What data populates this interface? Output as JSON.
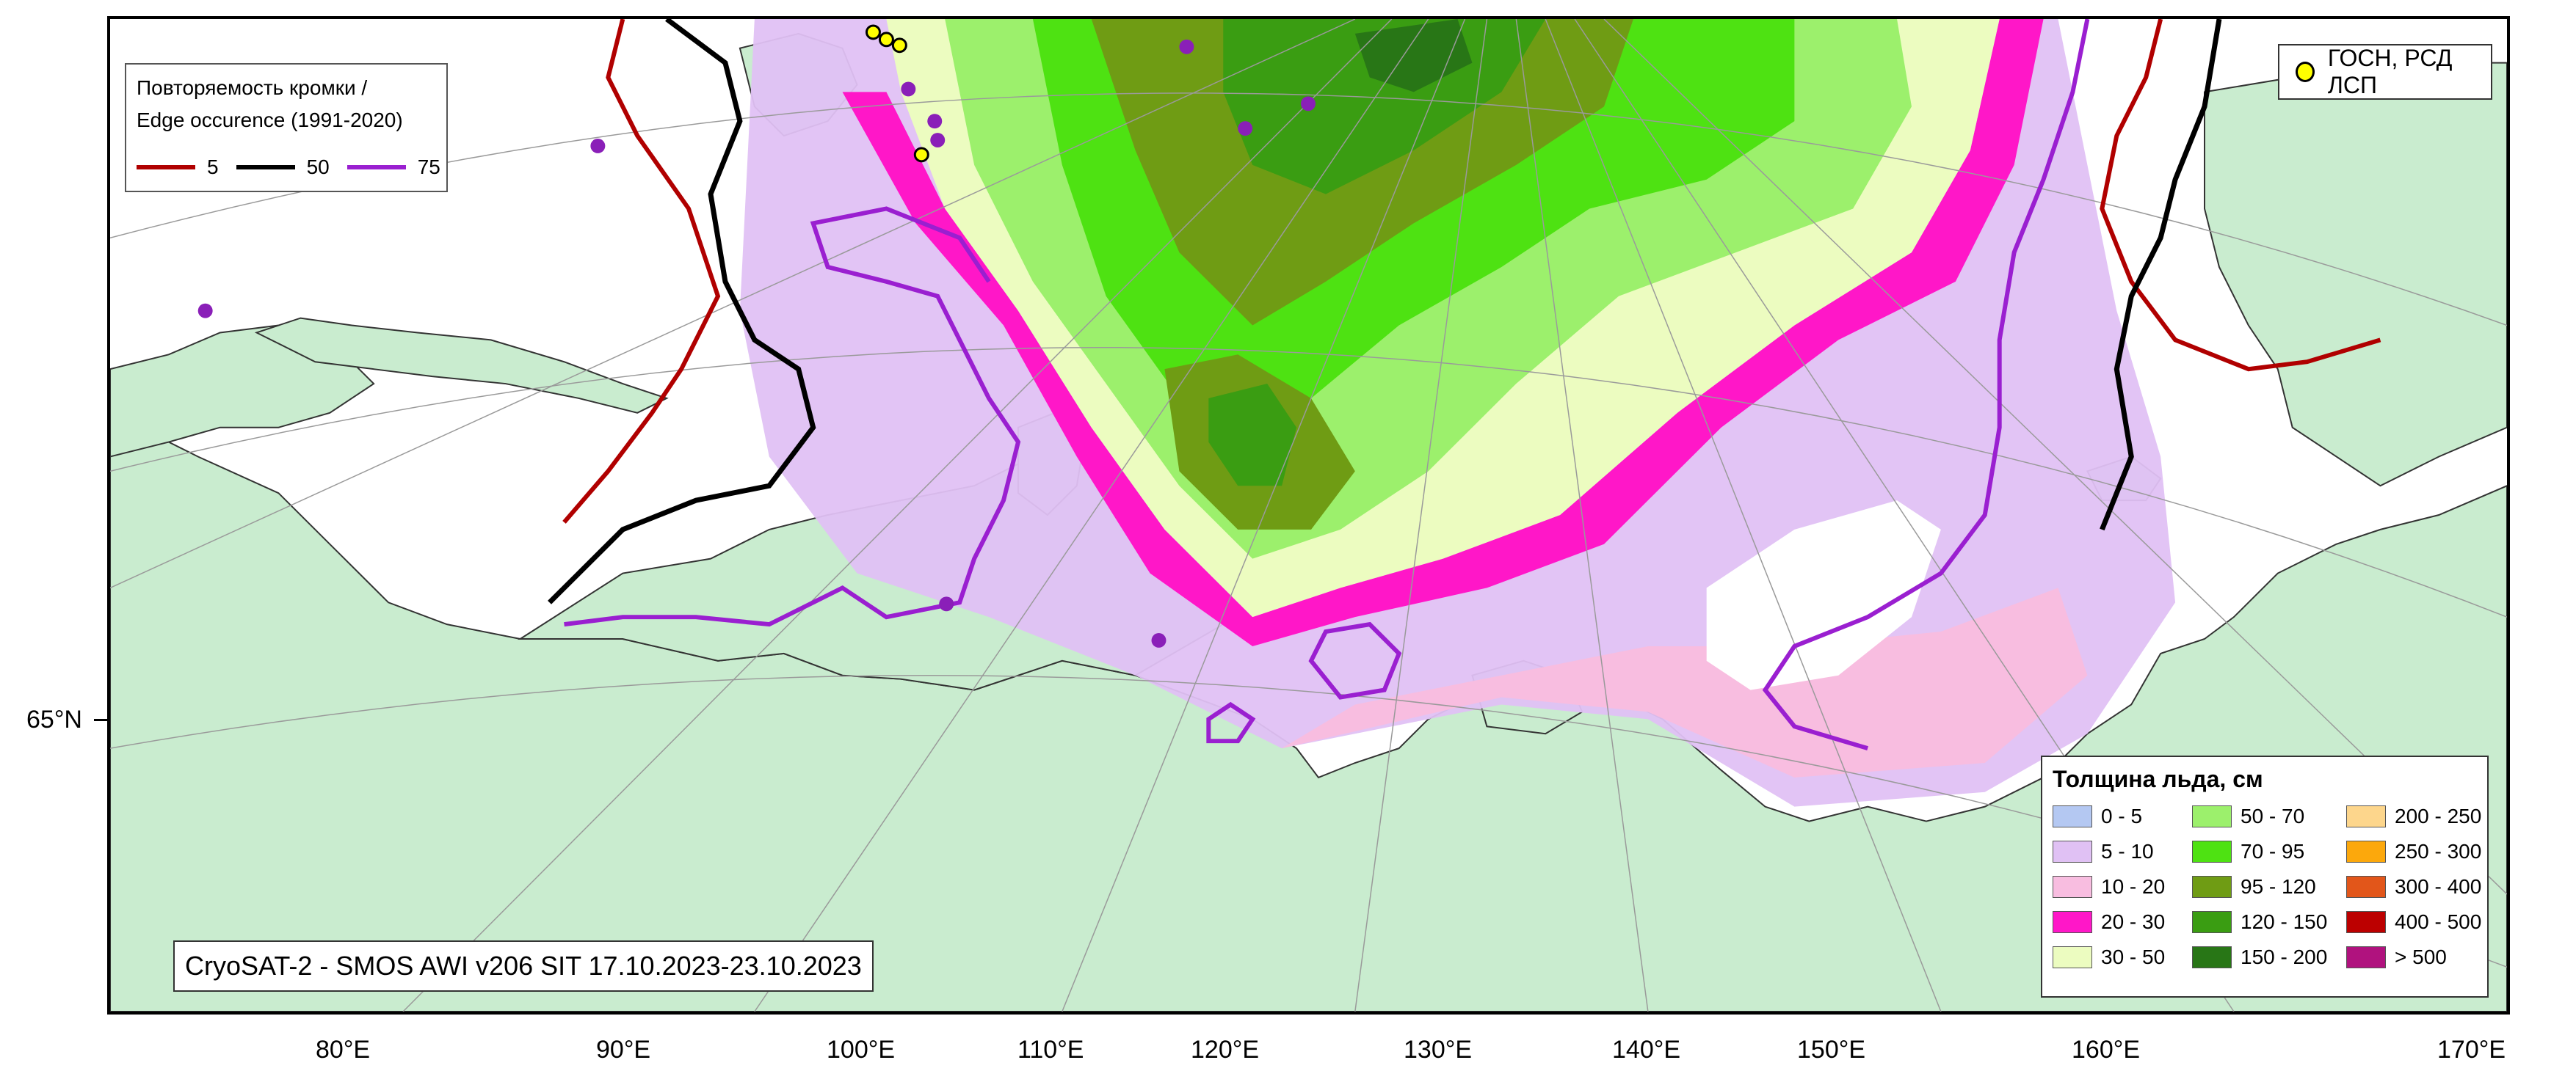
{
  "map": {
    "colors": {
      "land": "#c9eccf",
      "coast": "#333333",
      "grid": "#9a9a9a",
      "ocean": "#ffffff"
    },
    "longitude_labels": [
      "80°E",
      "90°E",
      "100°E",
      "110°E",
      "120°E",
      "130°E",
      "140°E",
      "150°E",
      "160°E",
      "170°E"
    ],
    "latitude_labels": [
      "65°N"
    ]
  },
  "edge_legend": {
    "title_line1": "Повторяемость кромки /",
    "title_line2": "Edge occurence (1991-2020)",
    "items": [
      {
        "label": "5",
        "color": "#b00000"
      },
      {
        "label": "50",
        "color": "#000000"
      },
      {
        "label": "75",
        "color": "#9a1fd0"
      }
    ]
  },
  "obs_legend": {
    "label": "ГОСН, РСД ЛСП",
    "marker_color": "#ffff00"
  },
  "thickness_legend": {
    "title": "Толщина льда, см",
    "classes": [
      {
        "label": "0 - 5",
        "color": "#b4c8f2"
      },
      {
        "label": "5 - 10",
        "color": "#e0c1f4"
      },
      {
        "label": "10 - 20",
        "color": "#f8bde0"
      },
      {
        "label": "20 - 30",
        "color": "#ff17c8"
      },
      {
        "label": "30 - 50",
        "color": "#ecfcc0"
      },
      {
        "label": "50 - 70",
        "color": "#9cf06c"
      },
      {
        "label": "70 - 95",
        "color": "#4ee212"
      },
      {
        "label": "95 - 120",
        "color": "#6f9c14"
      },
      {
        "label": "120 - 150",
        "color": "#3a9d12"
      },
      {
        "label": "150 - 200",
        "color": "#287616"
      },
      {
        "label": "200 - 250",
        "color": "#fdd68c"
      },
      {
        "label": "250 - 300",
        "color": "#fca80c"
      },
      {
        "label": "300 - 400",
        "color": "#e2561a"
      },
      {
        "label": "400 - 500",
        "color": "#bc0000"
      },
      {
        "label": "> 500",
        "color": "#b0127e"
      }
    ]
  },
  "caption": {
    "text": "CryoSAT-2 - SMOS AWI v206 SIT 17.10.2023-23.10.2023"
  }
}
